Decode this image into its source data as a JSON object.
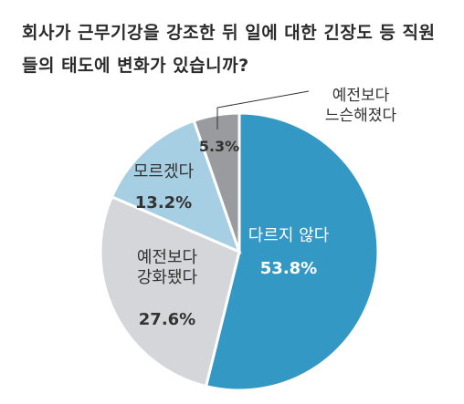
{
  "title": "회사가 근무기강을 강조한 뒤 일에 대한 긴장도 등 직원들의 태도에 변화가 있습니까?",
  "chart_data": {
    "type": "pie",
    "title": "회사가 근무기강을 강조한 뒤 일에 대한 긴장도 등 직원들의 태도에 변화가 있습니까?",
    "slices": [
      {
        "label": "다르지 않다",
        "label_lines": [
          "다르지 않다"
        ],
        "value": 53.8,
        "value_text": "53.8%",
        "color": "#3399c4",
        "text_color": "#ffffff"
      },
      {
        "label": "예전보다 강화됐다",
        "label_lines": [
          "예전보다",
          "강화됐다"
        ],
        "value": 27.6,
        "value_text": "27.6%",
        "color": "#d4d6d9",
        "text_color": "#333333"
      },
      {
        "label": "모르겠다",
        "label_lines": [
          "모르겠다"
        ],
        "value": 13.2,
        "value_text": "13.2%",
        "color": "#a7cfe3",
        "text_color": "#333333"
      },
      {
        "label": "예전보다 느슨해졌다",
        "label_lines": [
          "예전보다",
          "느슨해졌다"
        ],
        "value": 5.3,
        "value_text": "5.3%",
        "color": "#999b9e",
        "text_color": "#333333"
      }
    ]
  }
}
